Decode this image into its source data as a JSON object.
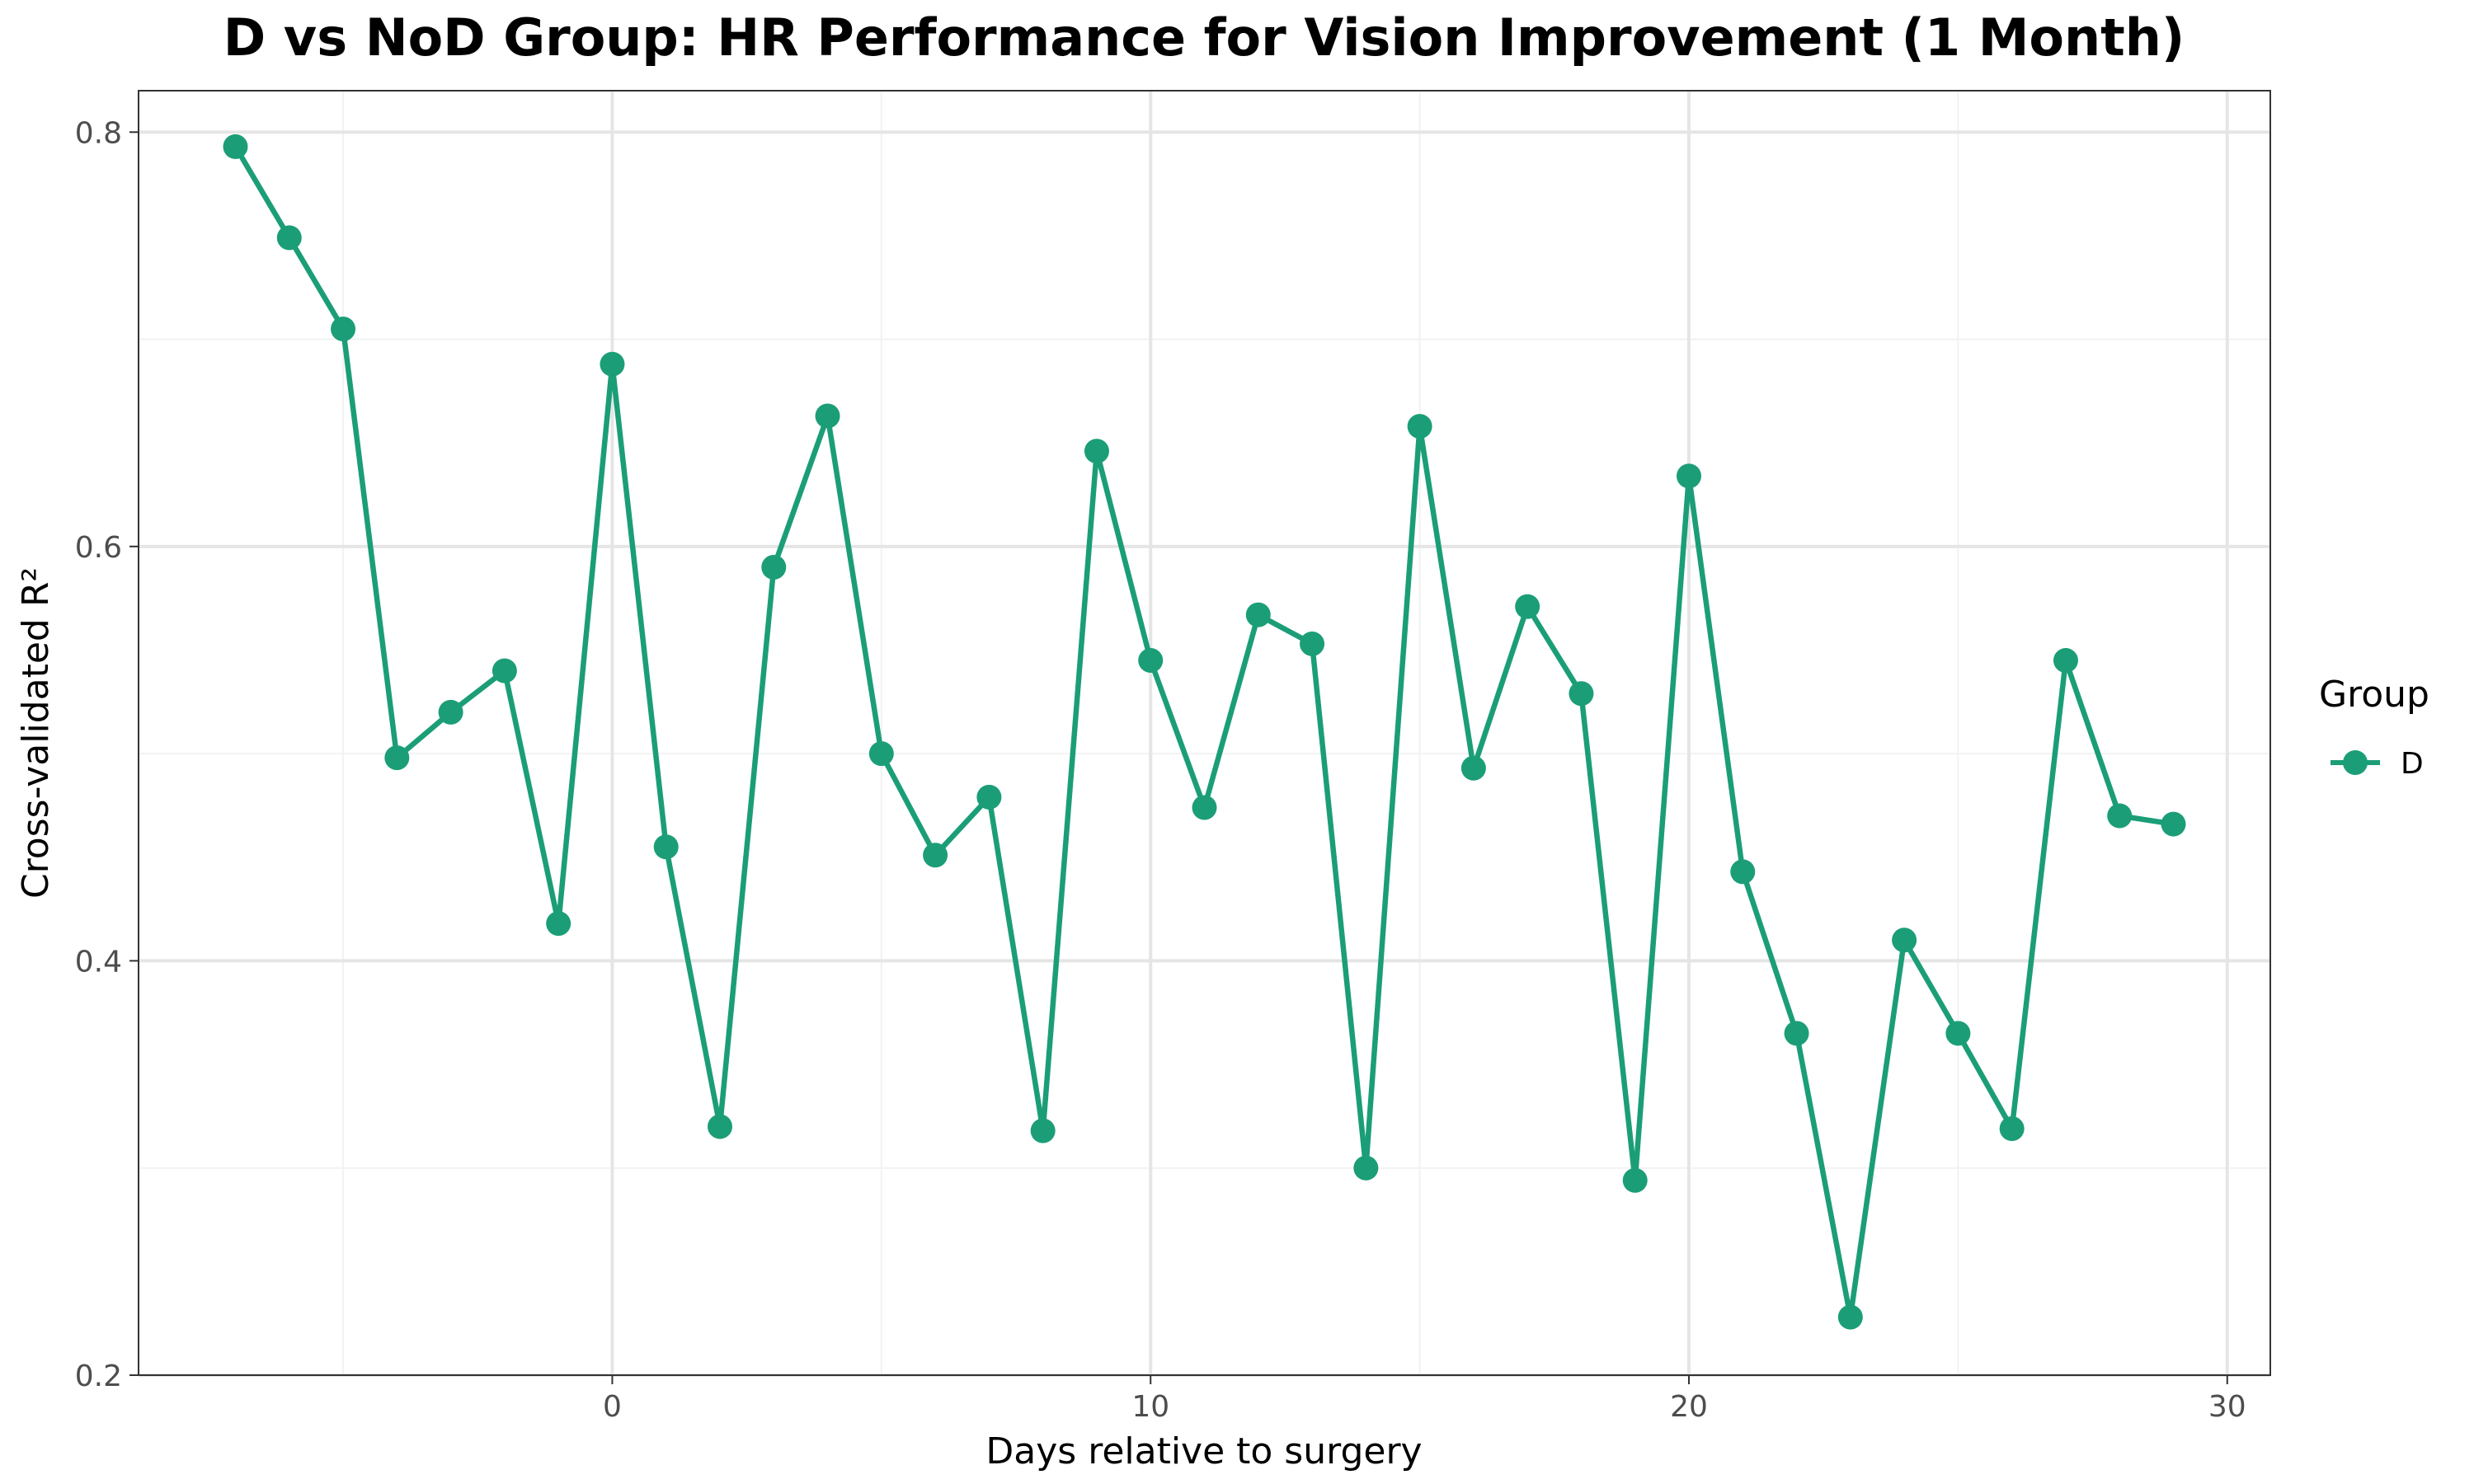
{
  "chart_data": {
    "type": "line",
    "title": "D vs NoD Group: HR Performance for Vision Improvement (1 Month)",
    "xlabel": "Days relative to surgery",
    "ylabel": "Cross-validated R²",
    "xlim": [
      -8.8,
      30.8
    ],
    "ylim": [
      0.2,
      0.82
    ],
    "x_ticks": [
      0,
      10,
      20,
      30
    ],
    "x_tick_labels": [
      "0",
      "10",
      "20",
      "30"
    ],
    "y_ticks": [
      0.2,
      0.4,
      0.6,
      0.8
    ],
    "y_tick_labels": [
      "0.2",
      "0.4",
      "0.6",
      "0.8"
    ],
    "x_minor_ticks": [
      -5,
      5,
      15,
      25
    ],
    "y_minor_ticks": [
      0.3,
      0.5,
      0.7
    ],
    "grid": true,
    "legend": {
      "title": "Group",
      "position": "right"
    },
    "series": [
      {
        "name": "D",
        "color": "#1b9e77",
        "x": [
          -7,
          -6,
          -5,
          -4,
          -3,
          -2,
          -1,
          0,
          1,
          2,
          3,
          4,
          5,
          6,
          7,
          8,
          9,
          10,
          11,
          12,
          13,
          14,
          15,
          16,
          17,
          18,
          19,
          20,
          21,
          22,
          23,
          24,
          25,
          26,
          27,
          28,
          29
        ],
        "y": [
          0.793,
          0.749,
          0.705,
          0.498,
          0.52,
          0.54,
          0.418,
          0.688,
          0.455,
          0.32,
          0.59,
          0.663,
          0.5,
          0.451,
          0.479,
          0.318,
          0.646,
          0.545,
          0.474,
          0.567,
          0.553,
          0.3,
          0.658,
          0.493,
          0.571,
          0.529,
          0.294,
          0.634,
          0.443,
          0.365,
          0.228,
          0.41,
          0.365,
          0.319,
          0.545,
          0.47,
          0.466
        ]
      }
    ]
  }
}
